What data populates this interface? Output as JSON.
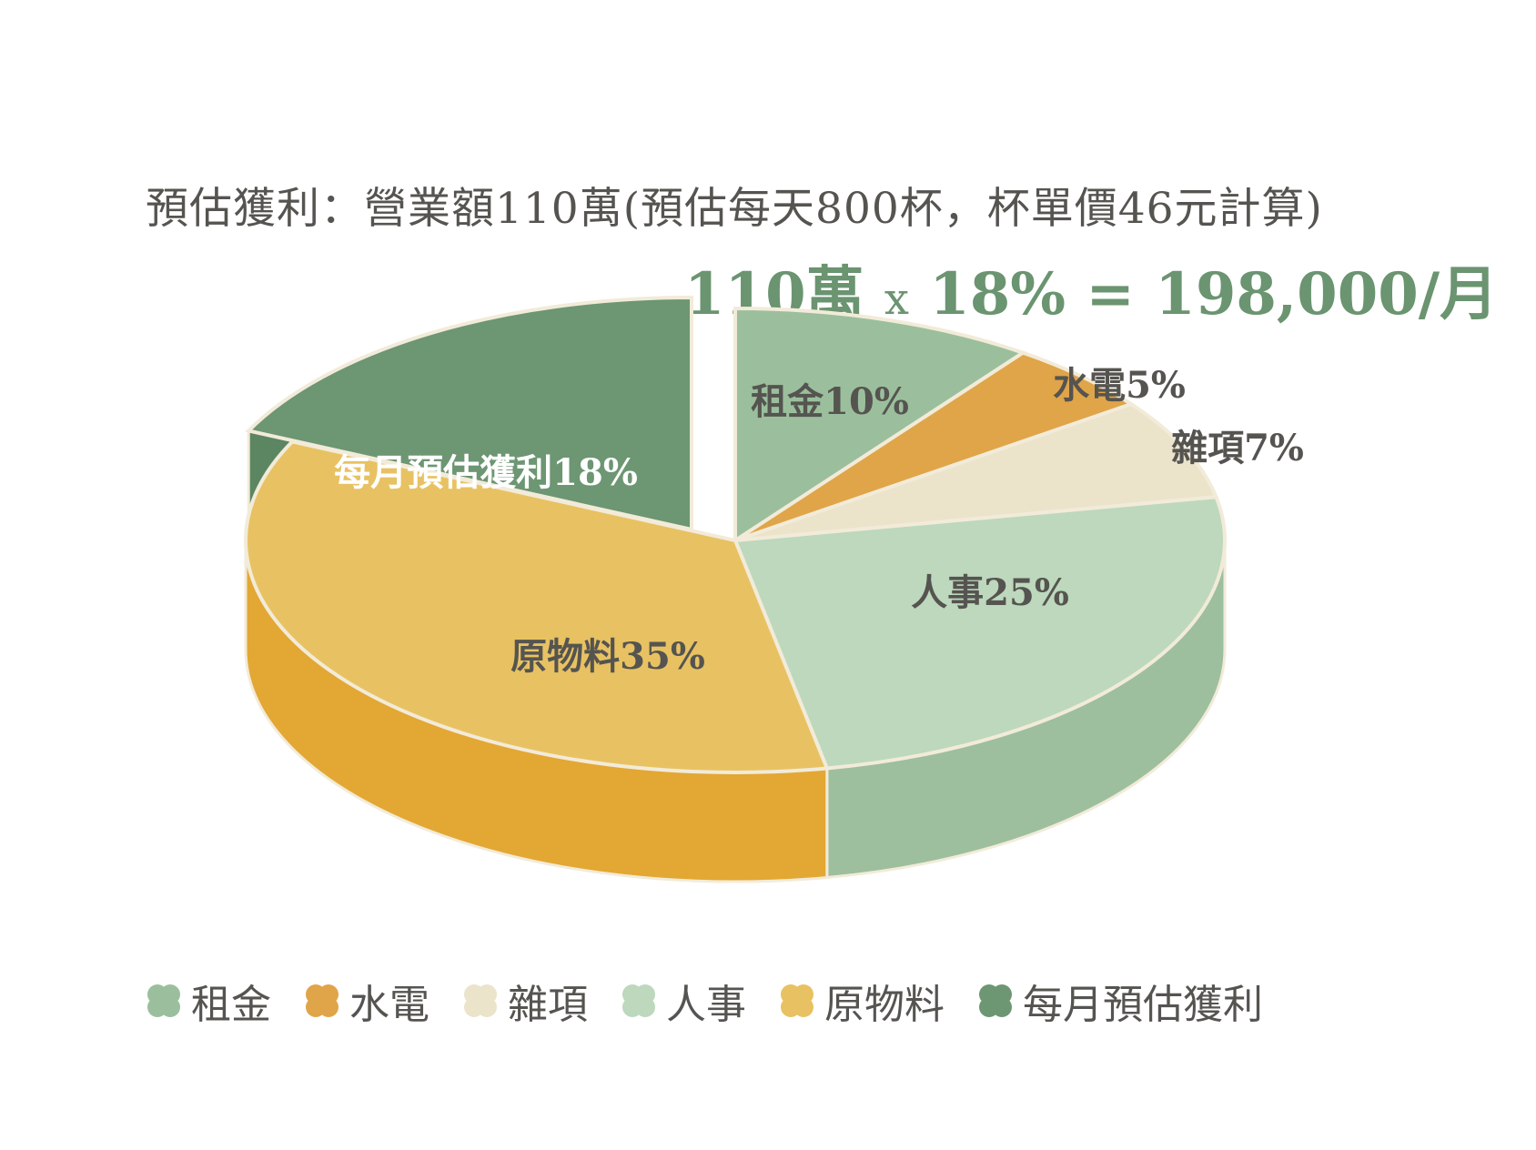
{
  "title": "預估獲利：營業額110萬(預估每天800杯，杯單價46元計算)",
  "formula": {
    "amount": "110萬",
    "times": "x",
    "rest": "18% = 198,000/月"
  },
  "chart_data": {
    "type": "pie",
    "slices": [
      {
        "name": "租金",
        "value": 10,
        "label": "租金10%",
        "color": "#9bbf9c",
        "side_color": "#8db38f"
      },
      {
        "name": "水電",
        "value": 5,
        "label": "水電5%",
        "color": "#e0a549",
        "side_color": "#d49636"
      },
      {
        "name": "雜項",
        "value": 7,
        "label": "雜項7%",
        "color": "#ebe4cb",
        "side_color": "#dcd3b4"
      },
      {
        "name": "人事",
        "value": 25,
        "label": "人事25%",
        "color": "#bdd8bd",
        "side_color": "#9dbf9e"
      },
      {
        "name": "原物料",
        "value": 35,
        "label": "原物料35%",
        "color": "#e8c262",
        "side_color": "#e3a733"
      },
      {
        "name": "每月預估獲利",
        "value": 18,
        "label": "每月預估獲利18%",
        "color": "#6d9673",
        "side_color": "#5c8662",
        "exploded": true
      }
    ],
    "legend_position": "bottom"
  },
  "colors": {
    "edge": "#f2ebd9",
    "label_dark": "#555450",
    "label_light": "#ffffff",
    "accent": "#6b9470"
  }
}
